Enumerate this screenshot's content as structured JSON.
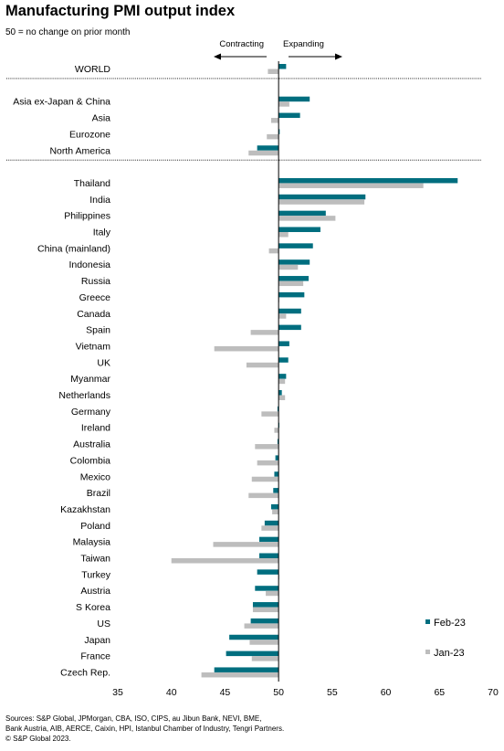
{
  "title": "Manufacturing PMI output index",
  "subtitle": "50 = no change on prior month",
  "annotations": {
    "contracting": "Contracting",
    "expanding": "Expanding"
  },
  "legend": {
    "position": "bottom-right"
  },
  "colors": {
    "feb": "#006E7F",
    "jan": "#BDBDBD",
    "axis": "#000000",
    "separator": "#000000"
  },
  "sources": [
    "Sources: S&P Global, JPMorgan, CBA, ISO, CIPS, au Jibun Bank, NEVI, BME,",
    "Bank Austria, AIB, AERCE, Caixin, HPI, Istanbul Chamber of Industry, Tengri Partners.",
    "© S&P Global 2023."
  ],
  "chart_data": {
    "type": "bar",
    "orientation": "horizontal",
    "baseline": 50,
    "xlim": [
      35,
      70
    ],
    "xticks": [
      35,
      40,
      45,
      50,
      55,
      60,
      65,
      70
    ],
    "grid": false,
    "groups": [
      [
        "WORLD"
      ],
      [
        "Asia ex-Japan & China",
        "Asia",
        "Eurozone",
        "North America"
      ],
      [
        "Thailand",
        "India",
        "Philippines",
        "Italy",
        "China (mainland)",
        "Indonesia",
        "Russia",
        "Greece",
        "Canada",
        "Spain",
        "Vietnam",
        "UK",
        "Myanmar",
        "Netherlands",
        "Germany",
        "Ireland",
        "Australia",
        "Colombia",
        "Mexico",
        "Brazil",
        "Kazakhstan",
        "Poland",
        "Malaysia",
        "Taiwan",
        "Turkey",
        "Austria",
        "S Korea",
        "US",
        "Japan",
        "France",
        "Czech Rep."
      ]
    ],
    "categories": [
      "WORLD",
      "Asia ex-Japan & China",
      "Asia",
      "Eurozone",
      "North America",
      "Thailand",
      "India",
      "Philippines",
      "Italy",
      "China (mainland)",
      "Indonesia",
      "Russia",
      "Greece",
      "Canada",
      "Spain",
      "Vietnam",
      "UK",
      "Myanmar",
      "Netherlands",
      "Germany",
      "Ireland",
      "Australia",
      "Colombia",
      "Mexico",
      "Brazil",
      "Kazakhstan",
      "Poland",
      "Malaysia",
      "Taiwan",
      "Turkey",
      "Austria",
      "S Korea",
      "US",
      "Japan",
      "France",
      "Czech Rep."
    ],
    "series": [
      {
        "name": "Feb-23",
        "values": [
          50.7,
          52.9,
          52.0,
          50.1,
          48.0,
          66.7,
          58.1,
          54.4,
          53.9,
          53.2,
          52.9,
          52.8,
          52.4,
          52.1,
          52.1,
          51.0,
          50.9,
          50.7,
          50.3,
          49.9,
          50.0,
          49.9,
          49.7,
          49.6,
          49.5,
          49.3,
          48.7,
          48.2,
          48.2,
          48.0,
          47.8,
          47.6,
          47.4,
          45.4,
          45.1,
          44.0
        ]
      },
      {
        "name": "Jan-23",
        "values": [
          49.0,
          51.0,
          49.3,
          48.9,
          47.2,
          63.5,
          58.0,
          55.3,
          50.9,
          49.1,
          51.8,
          52.3,
          50.0,
          50.7,
          47.4,
          44.0,
          47.0,
          50.6,
          50.6,
          48.4,
          49.6,
          47.8,
          48.0,
          47.5,
          47.2,
          49.4,
          48.4,
          43.9,
          40.0,
          50.0,
          48.8,
          47.6,
          46.8,
          47.3,
          47.5,
          42.8
        ]
      }
    ]
  }
}
